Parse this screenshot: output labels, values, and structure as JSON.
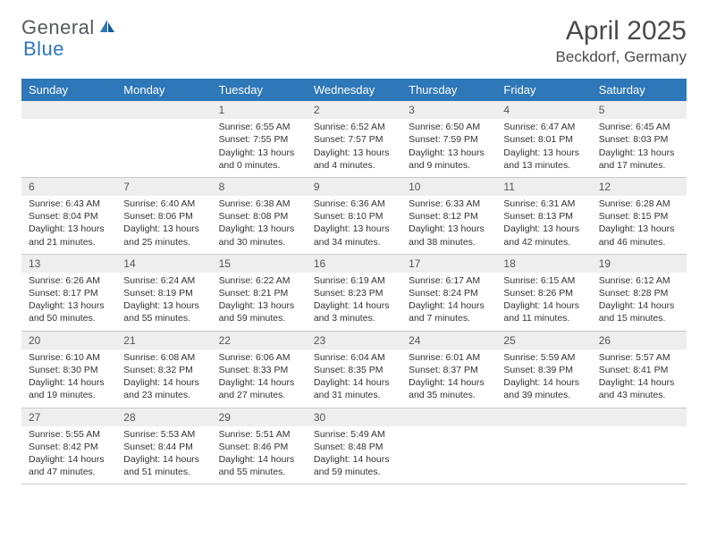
{
  "brand": {
    "name_part1": "General",
    "name_part2": "Blue",
    "color_primary": "#2e77b8",
    "color_text": "#555a5f"
  },
  "title": "April 2025",
  "location": "Beckdorf, Germany",
  "colors": {
    "header_bg": "#2e77b8",
    "header_text": "#ffffff",
    "daynum_bg": "#eeeeee",
    "border": "#c8c8c8",
    "background": "#ffffff",
    "body_text": "#333333"
  },
  "day_names": [
    "Sunday",
    "Monday",
    "Tuesday",
    "Wednesday",
    "Thursday",
    "Friday",
    "Saturday"
  ],
  "weeks": [
    [
      {
        "n": "",
        "sr": "",
        "ss": "",
        "dl": ""
      },
      {
        "n": "",
        "sr": "",
        "ss": "",
        "dl": ""
      },
      {
        "n": "1",
        "sr": "Sunrise: 6:55 AM",
        "ss": "Sunset: 7:55 PM",
        "dl": "Daylight: 13 hours and 0 minutes."
      },
      {
        "n": "2",
        "sr": "Sunrise: 6:52 AM",
        "ss": "Sunset: 7:57 PM",
        "dl": "Daylight: 13 hours and 4 minutes."
      },
      {
        "n": "3",
        "sr": "Sunrise: 6:50 AM",
        "ss": "Sunset: 7:59 PM",
        "dl": "Daylight: 13 hours and 9 minutes."
      },
      {
        "n": "4",
        "sr": "Sunrise: 6:47 AM",
        "ss": "Sunset: 8:01 PM",
        "dl": "Daylight: 13 hours and 13 minutes."
      },
      {
        "n": "5",
        "sr": "Sunrise: 6:45 AM",
        "ss": "Sunset: 8:03 PM",
        "dl": "Daylight: 13 hours and 17 minutes."
      }
    ],
    [
      {
        "n": "6",
        "sr": "Sunrise: 6:43 AM",
        "ss": "Sunset: 8:04 PM",
        "dl": "Daylight: 13 hours and 21 minutes."
      },
      {
        "n": "7",
        "sr": "Sunrise: 6:40 AM",
        "ss": "Sunset: 8:06 PM",
        "dl": "Daylight: 13 hours and 25 minutes."
      },
      {
        "n": "8",
        "sr": "Sunrise: 6:38 AM",
        "ss": "Sunset: 8:08 PM",
        "dl": "Daylight: 13 hours and 30 minutes."
      },
      {
        "n": "9",
        "sr": "Sunrise: 6:36 AM",
        "ss": "Sunset: 8:10 PM",
        "dl": "Daylight: 13 hours and 34 minutes."
      },
      {
        "n": "10",
        "sr": "Sunrise: 6:33 AM",
        "ss": "Sunset: 8:12 PM",
        "dl": "Daylight: 13 hours and 38 minutes."
      },
      {
        "n": "11",
        "sr": "Sunrise: 6:31 AM",
        "ss": "Sunset: 8:13 PM",
        "dl": "Daylight: 13 hours and 42 minutes."
      },
      {
        "n": "12",
        "sr": "Sunrise: 6:28 AM",
        "ss": "Sunset: 8:15 PM",
        "dl": "Daylight: 13 hours and 46 minutes."
      }
    ],
    [
      {
        "n": "13",
        "sr": "Sunrise: 6:26 AM",
        "ss": "Sunset: 8:17 PM",
        "dl": "Daylight: 13 hours and 50 minutes."
      },
      {
        "n": "14",
        "sr": "Sunrise: 6:24 AM",
        "ss": "Sunset: 8:19 PM",
        "dl": "Daylight: 13 hours and 55 minutes."
      },
      {
        "n": "15",
        "sr": "Sunrise: 6:22 AM",
        "ss": "Sunset: 8:21 PM",
        "dl": "Daylight: 13 hours and 59 minutes."
      },
      {
        "n": "16",
        "sr": "Sunrise: 6:19 AM",
        "ss": "Sunset: 8:23 PM",
        "dl": "Daylight: 14 hours and 3 minutes."
      },
      {
        "n": "17",
        "sr": "Sunrise: 6:17 AM",
        "ss": "Sunset: 8:24 PM",
        "dl": "Daylight: 14 hours and 7 minutes."
      },
      {
        "n": "18",
        "sr": "Sunrise: 6:15 AM",
        "ss": "Sunset: 8:26 PM",
        "dl": "Daylight: 14 hours and 11 minutes."
      },
      {
        "n": "19",
        "sr": "Sunrise: 6:12 AM",
        "ss": "Sunset: 8:28 PM",
        "dl": "Daylight: 14 hours and 15 minutes."
      }
    ],
    [
      {
        "n": "20",
        "sr": "Sunrise: 6:10 AM",
        "ss": "Sunset: 8:30 PM",
        "dl": "Daylight: 14 hours and 19 minutes."
      },
      {
        "n": "21",
        "sr": "Sunrise: 6:08 AM",
        "ss": "Sunset: 8:32 PM",
        "dl": "Daylight: 14 hours and 23 minutes."
      },
      {
        "n": "22",
        "sr": "Sunrise: 6:06 AM",
        "ss": "Sunset: 8:33 PM",
        "dl": "Daylight: 14 hours and 27 minutes."
      },
      {
        "n": "23",
        "sr": "Sunrise: 6:04 AM",
        "ss": "Sunset: 8:35 PM",
        "dl": "Daylight: 14 hours and 31 minutes."
      },
      {
        "n": "24",
        "sr": "Sunrise: 6:01 AM",
        "ss": "Sunset: 8:37 PM",
        "dl": "Daylight: 14 hours and 35 minutes."
      },
      {
        "n": "25",
        "sr": "Sunrise: 5:59 AM",
        "ss": "Sunset: 8:39 PM",
        "dl": "Daylight: 14 hours and 39 minutes."
      },
      {
        "n": "26",
        "sr": "Sunrise: 5:57 AM",
        "ss": "Sunset: 8:41 PM",
        "dl": "Daylight: 14 hours and 43 minutes."
      }
    ],
    [
      {
        "n": "27",
        "sr": "Sunrise: 5:55 AM",
        "ss": "Sunset: 8:42 PM",
        "dl": "Daylight: 14 hours and 47 minutes."
      },
      {
        "n": "28",
        "sr": "Sunrise: 5:53 AM",
        "ss": "Sunset: 8:44 PM",
        "dl": "Daylight: 14 hours and 51 minutes."
      },
      {
        "n": "29",
        "sr": "Sunrise: 5:51 AM",
        "ss": "Sunset: 8:46 PM",
        "dl": "Daylight: 14 hours and 55 minutes."
      },
      {
        "n": "30",
        "sr": "Sunrise: 5:49 AM",
        "ss": "Sunset: 8:48 PM",
        "dl": "Daylight: 14 hours and 59 minutes."
      },
      {
        "n": "",
        "sr": "",
        "ss": "",
        "dl": ""
      },
      {
        "n": "",
        "sr": "",
        "ss": "",
        "dl": ""
      },
      {
        "n": "",
        "sr": "",
        "ss": "",
        "dl": ""
      }
    ]
  ]
}
